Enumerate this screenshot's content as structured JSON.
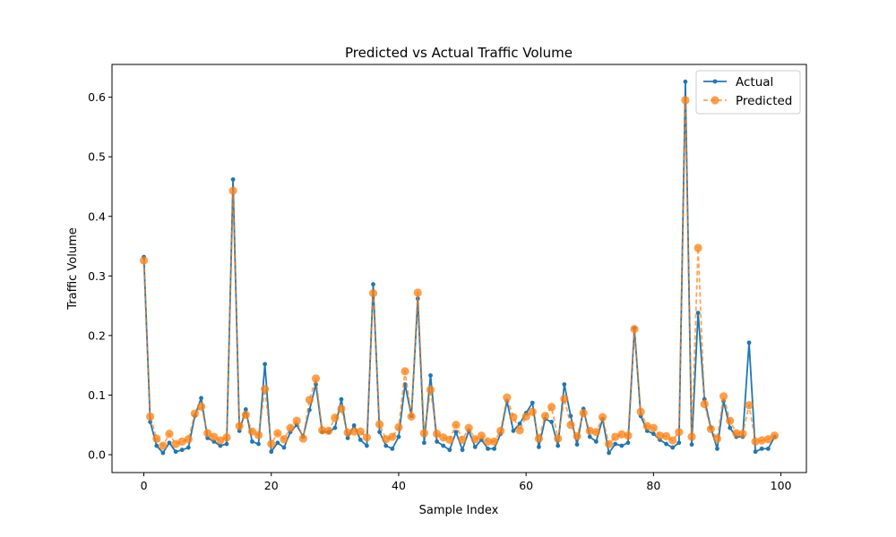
{
  "chart_data": {
    "type": "line",
    "title": "Predicted vs Actual Traffic Volume",
    "xlabel": "Sample Index",
    "ylabel": "Traffic Volume",
    "xlim": [
      -5,
      104
    ],
    "ylim": [
      -0.03,
      0.655
    ],
    "xticks": [
      0,
      20,
      40,
      60,
      80,
      100
    ],
    "yticks": [
      0.0,
      0.1,
      0.2,
      0.3,
      0.4,
      0.5,
      0.6
    ],
    "xtick_labels": [
      "0",
      "20",
      "40",
      "60",
      "80",
      "100"
    ],
    "ytick_labels": [
      "0.0",
      "0.1",
      "0.2",
      "0.3",
      "0.4",
      "0.5",
      "0.6"
    ],
    "grid": false,
    "legend_position": "top-right",
    "series": [
      {
        "name": "Actual",
        "color": "#1f77b4",
        "style": "solid",
        "marker": "small-dot",
        "values": [
          0.332,
          0.055,
          0.015,
          0.003,
          0.02,
          0.005,
          0.008,
          0.012,
          0.065,
          0.095,
          0.028,
          0.022,
          0.015,
          0.018,
          0.462,
          0.04,
          0.076,
          0.022,
          0.018,
          0.152,
          0.005,
          0.02,
          0.012,
          0.038,
          0.05,
          0.03,
          0.075,
          0.118,
          0.038,
          0.038,
          0.045,
          0.093,
          0.028,
          0.049,
          0.025,
          0.015,
          0.286,
          0.038,
          0.015,
          0.01,
          0.03,
          0.118,
          0.065,
          0.262,
          0.02,
          0.133,
          0.022,
          0.015,
          0.008,
          0.038,
          0.008,
          0.04,
          0.013,
          0.025,
          0.01,
          0.01,
          0.035,
          0.09,
          0.04,
          0.052,
          0.07,
          0.087,
          0.013,
          0.06,
          0.055,
          0.015,
          0.118,
          0.065,
          0.017,
          0.077,
          0.03,
          0.022,
          0.06,
          0.003,
          0.018,
          0.015,
          0.02,
          0.212,
          0.065,
          0.04,
          0.035,
          0.025,
          0.018,
          0.012,
          0.02,
          0.626,
          0.017,
          0.238,
          0.093,
          0.045,
          0.01,
          0.09,
          0.045,
          0.03,
          0.03,
          0.188,
          0.005,
          0.01,
          0.01,
          0.03
        ]
      },
      {
        "name": "Predicted",
        "color": "#ff7f0e",
        "style": "dashed",
        "marker": "large-dot",
        "values": [
          0.326,
          0.064,
          0.027,
          0.015,
          0.035,
          0.018,
          0.022,
          0.026,
          0.069,
          0.081,
          0.036,
          0.03,
          0.024,
          0.029,
          0.443,
          0.048,
          0.067,
          0.039,
          0.033,
          0.11,
          0.018,
          0.036,
          0.026,
          0.045,
          0.057,
          0.027,
          0.092,
          0.128,
          0.041,
          0.04,
          0.062,
          0.077,
          0.037,
          0.039,
          0.039,
          0.029,
          0.271,
          0.051,
          0.026,
          0.03,
          0.046,
          0.14,
          0.064,
          0.272,
          0.036,
          0.109,
          0.035,
          0.029,
          0.025,
          0.05,
          0.025,
          0.045,
          0.026,
          0.032,
          0.022,
          0.022,
          0.04,
          0.096,
          0.063,
          0.041,
          0.064,
          0.072,
          0.027,
          0.065,
          0.08,
          0.027,
          0.094,
          0.05,
          0.031,
          0.07,
          0.04,
          0.038,
          0.063,
          0.018,
          0.03,
          0.034,
          0.032,
          0.211,
          0.072,
          0.048,
          0.045,
          0.032,
          0.031,
          0.024,
          0.038,
          0.595,
          0.03,
          0.347,
          0.085,
          0.043,
          0.027,
          0.098,
          0.057,
          0.036,
          0.035,
          0.083,
          0.022,
          0.024,
          0.026,
          0.032
        ]
      }
    ]
  }
}
